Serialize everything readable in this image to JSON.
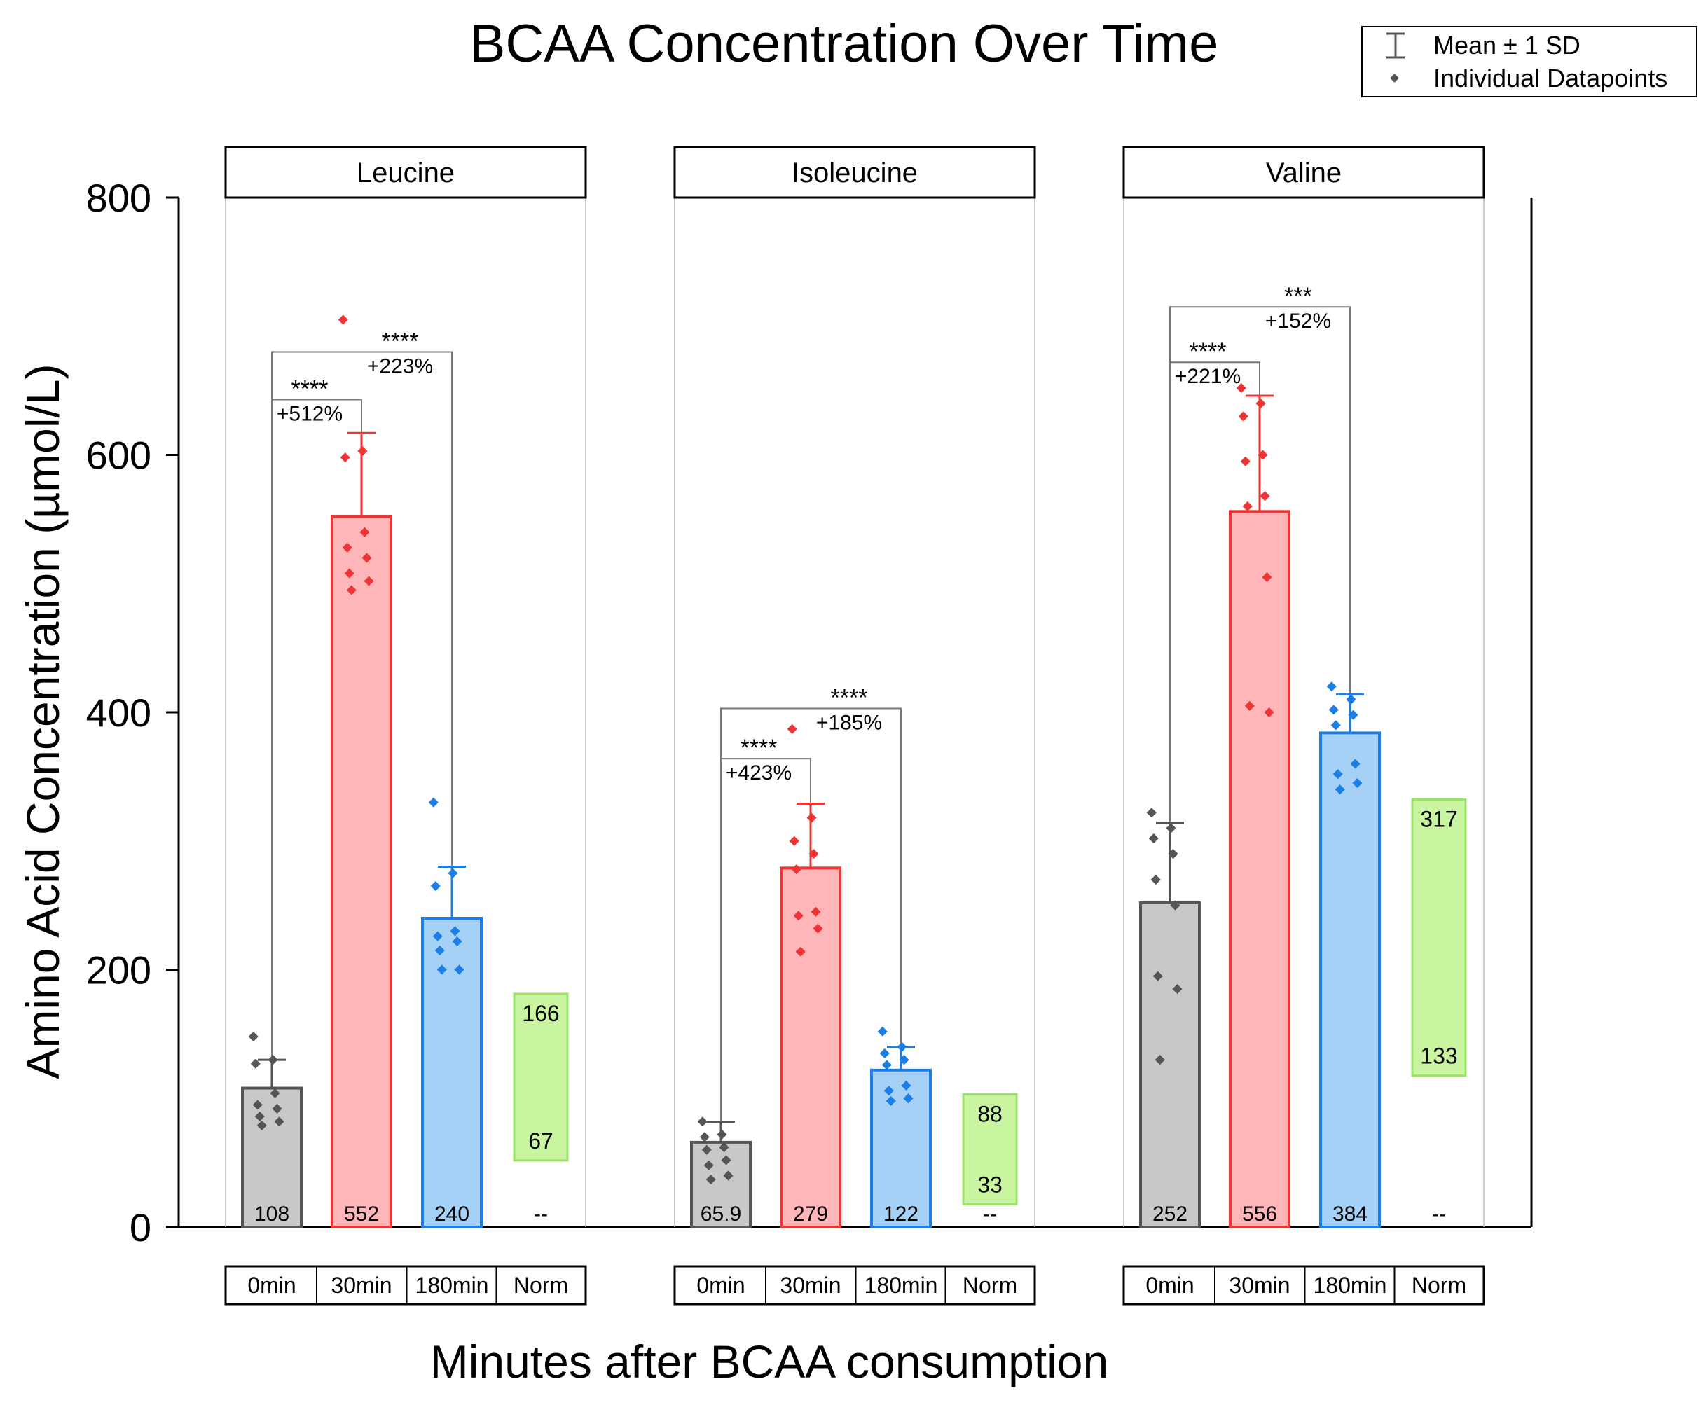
{
  "chart_data": {
    "type": "bar",
    "title": "BCAA Concentration Over Time",
    "xlabel": "Minutes after BCAA consumption",
    "ylabel": "Amino Acid Concentration (µmol/L)",
    "ylim": [
      0,
      800
    ],
    "yticks": [
      0,
      200,
      400,
      600,
      800
    ],
    "categories": [
      "0min",
      "30min",
      "180min",
      "Norm"
    ],
    "legend": {
      "position": "top-right",
      "entries": [
        "Mean ± 1 SD",
        "Individual Datapoints"
      ]
    },
    "colors": {
      "0min_fill": "#c8c8c8",
      "0min_edge": "#555555",
      "30min_fill": "#ffb6b9",
      "30min_edge": "#ee3535",
      "180min_fill": "#a6d1f7",
      "180min_edge": "#1c7fe6",
      "norm_fill": "#c9f5a0",
      "norm_edge": "#9be367"
    },
    "panels": [
      {
        "name": "Leucine",
        "bars": [
          {
            "category": "0min",
            "mean": 108,
            "label": "108",
            "sd": 22,
            "points": [
              148,
              130,
              127,
              104,
              95,
              92,
              86,
              82,
              79
            ]
          },
          {
            "category": "30min",
            "mean": 552,
            "label": "552",
            "sd": 65,
            "points": [
              705,
              603,
              598,
              540,
              528,
              520,
              508,
              502,
              495
            ]
          },
          {
            "category": "180min",
            "mean": 240,
            "label": "240",
            "sd": 40,
            "points": [
              330,
              275,
              265,
              230,
              226,
              222,
              215,
              200,
              200
            ]
          }
        ],
        "norm": {
          "high": 166,
          "low": 67,
          "high_label": "166",
          "low_label": "67",
          "label": "--"
        },
        "significance": [
          {
            "from": "0min",
            "to": "30min",
            "stars": "****",
            "pct": "+512%",
            "y": 643
          },
          {
            "from": "0min",
            "to": "180min",
            "stars": "****",
            "pct": "+223%",
            "y": 680
          }
        ]
      },
      {
        "name": "Isoleucine",
        "bars": [
          {
            "category": "0min",
            "mean": 65.9,
            "label": "65.9",
            "sd": 16,
            "points": [
              82,
              72,
              70,
              62,
              60,
              52,
              48,
              40,
              37
            ]
          },
          {
            "category": "30min",
            "mean": 279,
            "label": "279",
            "sd": 50,
            "points": [
              387,
              318,
              300,
              290,
              278,
              245,
              242,
              232,
              214
            ]
          },
          {
            "category": "180min",
            "mean": 122,
            "label": "122",
            "sd": 18,
            "points": [
              152,
              140,
              135,
              130,
              126,
              110,
              106,
              100,
              98
            ]
          }
        ],
        "norm": {
          "high": 88,
          "low": 33,
          "high_label": "88",
          "low_label": "33",
          "label": "--"
        },
        "significance": [
          {
            "from": "0min",
            "to": "30min",
            "stars": "****",
            "pct": "+423%",
            "y": 364
          },
          {
            "from": "0min",
            "to": "180min",
            "stars": "****",
            "pct": "+185%",
            "y": 403
          }
        ]
      },
      {
        "name": "Valine",
        "bars": [
          {
            "category": "0min",
            "mean": 252,
            "label": "252",
            "sd": 62,
            "points": [
              322,
              310,
              302,
              290,
              270,
              250,
              195,
              185,
              130
            ]
          },
          {
            "category": "30min",
            "mean": 556,
            "label": "556",
            "sd": 90,
            "points": [
              652,
              640,
              630,
              600,
              595,
              568,
              560,
              505,
              405,
              400
            ]
          },
          {
            "category": "180min",
            "mean": 384,
            "label": "384",
            "sd": 30,
            "points": [
              420,
              410,
              402,
              398,
              390,
              360,
              352,
              345,
              340
            ]
          }
        ],
        "norm": {
          "high": 317,
          "low": 133,
          "high_label": "317",
          "low_label": "133",
          "label": "--"
        },
        "significance": [
          {
            "from": "0min",
            "to": "30min",
            "stars": "****",
            "pct": "+221%",
            "y": 672
          },
          {
            "from": "0min",
            "to": "180min",
            "stars": "***",
            "pct": "+152%",
            "y": 715
          }
        ]
      }
    ]
  }
}
